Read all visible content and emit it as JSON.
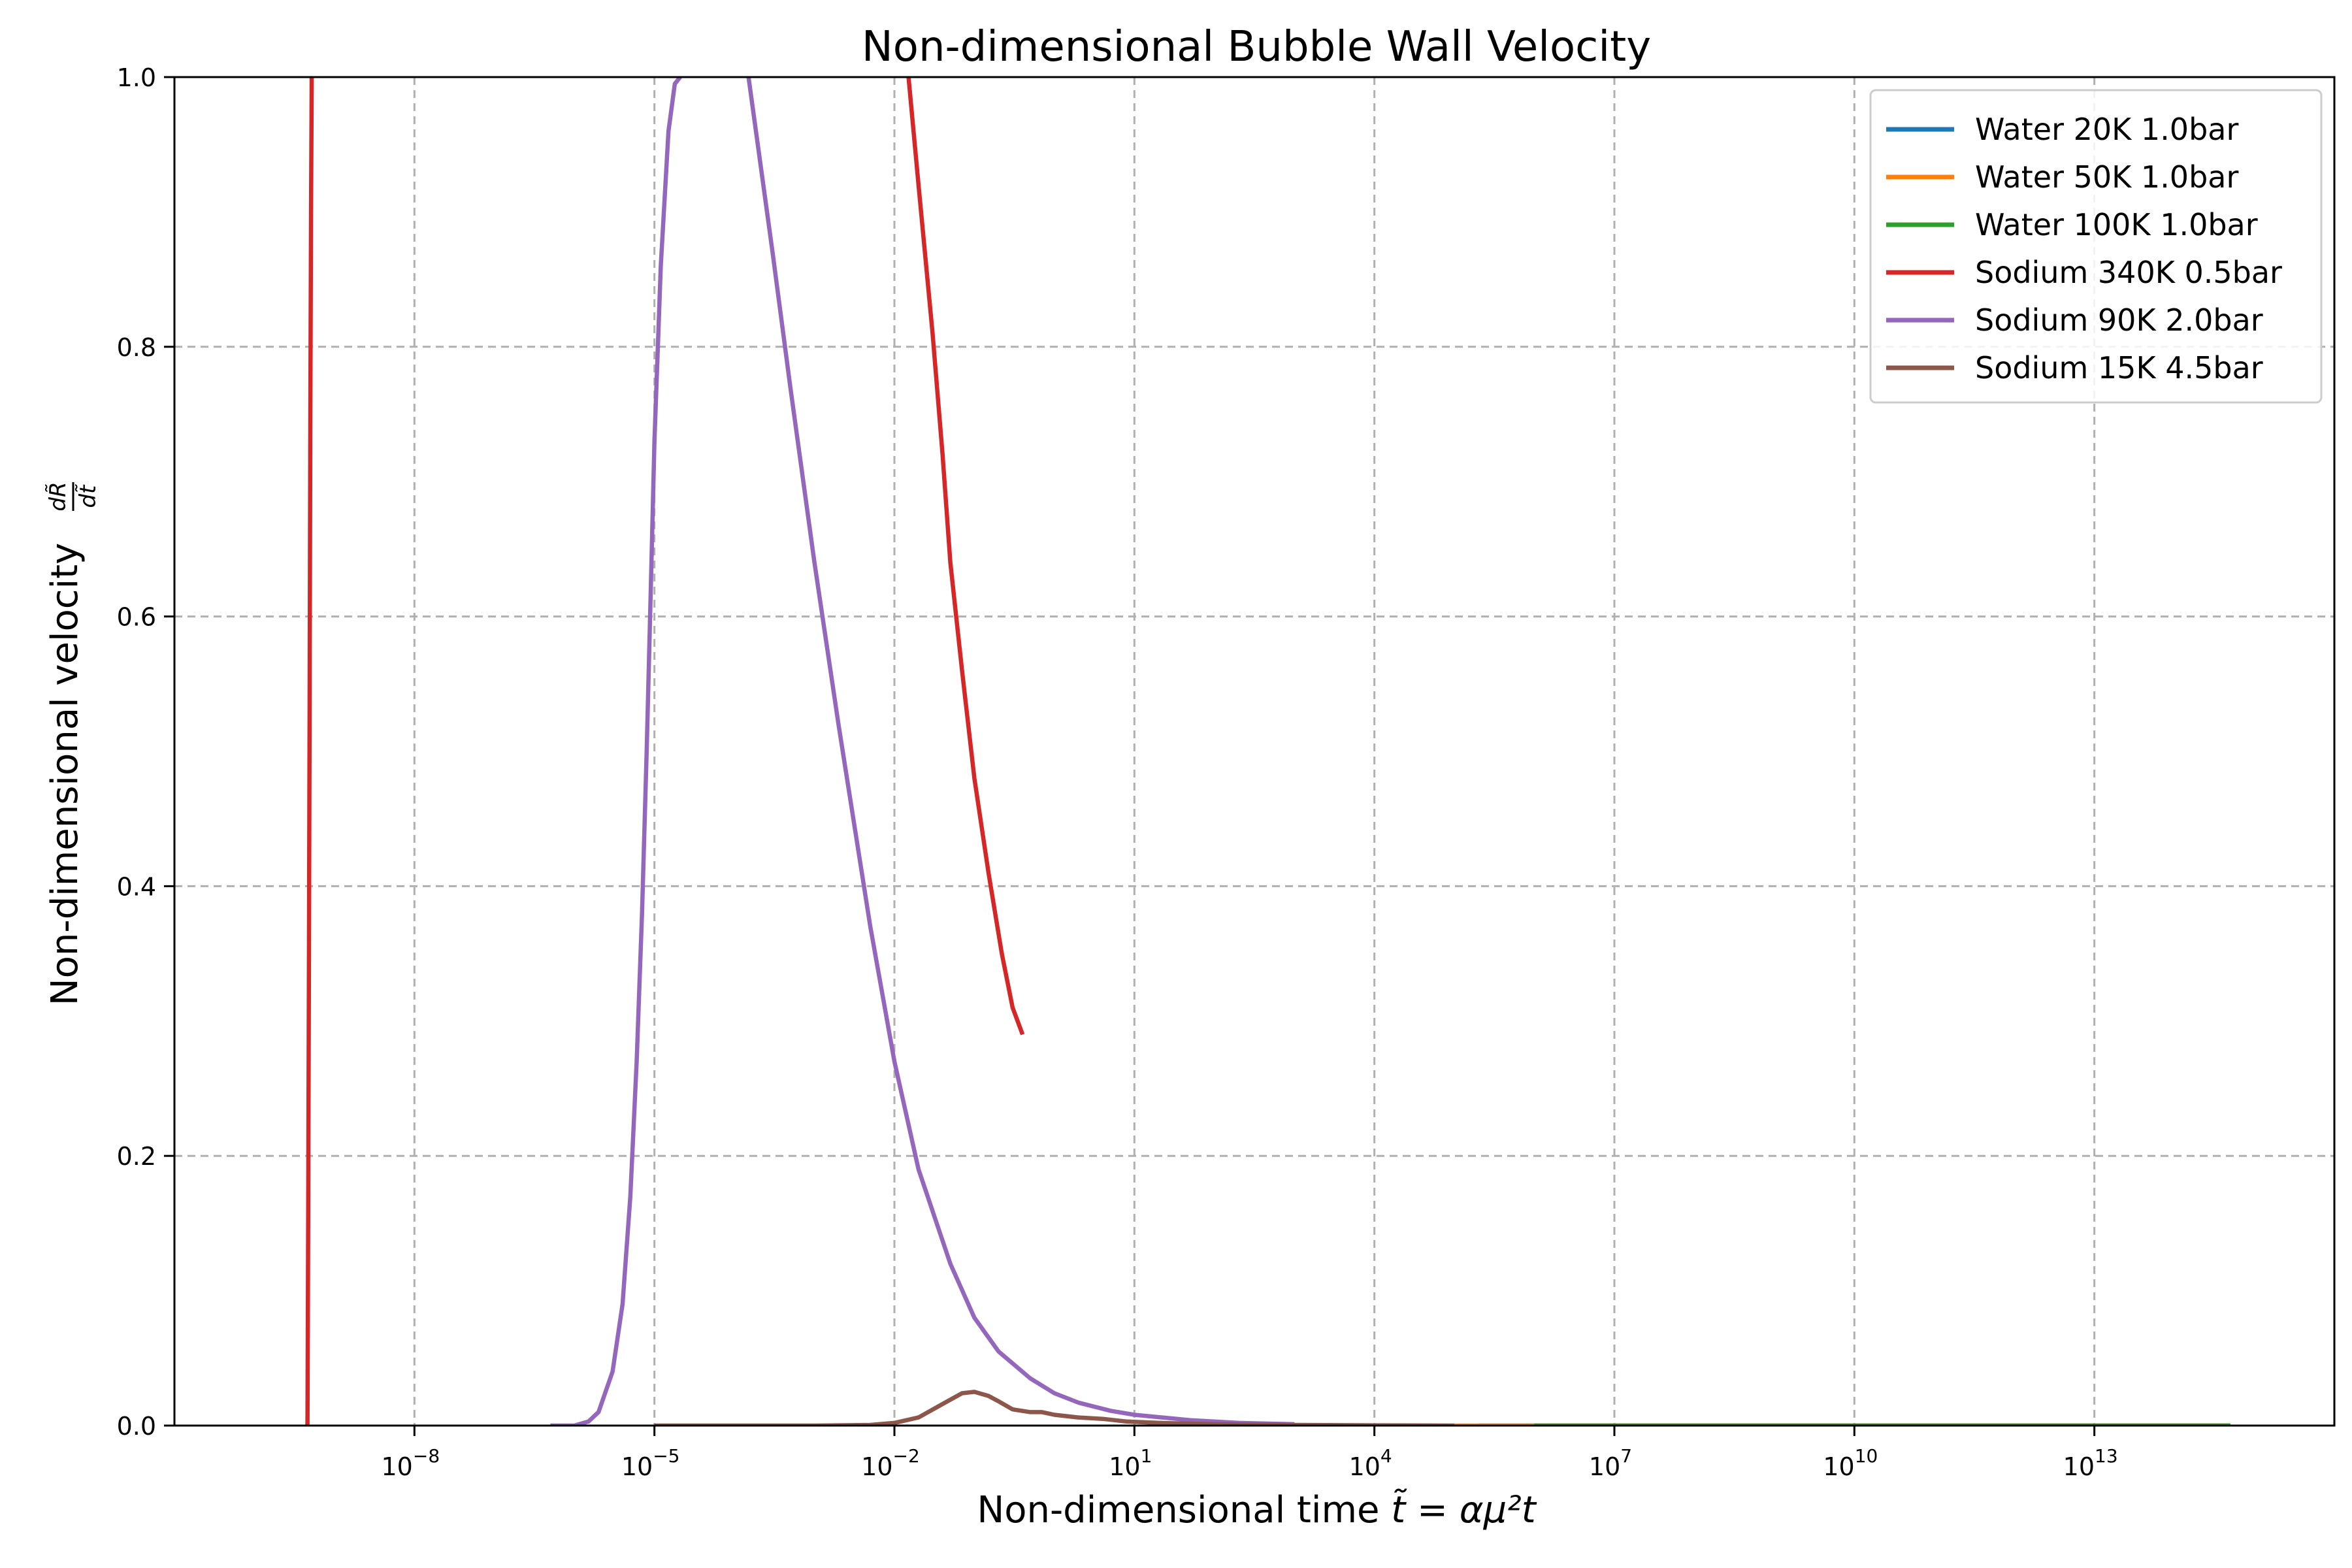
{
  "chart_data": {
    "type": "line",
    "title": "Non-dimensional Bubble Wall Velocity",
    "xlabel_text": "Non-dimensional time ",
    "xlabel_math": "t̃ = αμ²t",
    "ylabel_text": "Non-dimensional velocity ",
    "ylabel_math_num": "dR̃",
    "ylabel_math_den": "dt̃",
    "x_scale": "log",
    "xlim": [
      1e-11,
      1e+16
    ],
    "ylim": [
      0,
      1
    ],
    "grid": true,
    "legend_position": "top-right",
    "x_ticks": [
      {
        "base": "10",
        "exp": "−8",
        "value": 1e-08
      },
      {
        "base": "10",
        "exp": "−5",
        "value": 1e-05
      },
      {
        "base": "10",
        "exp": "−2",
        "value": 0.01
      },
      {
        "base": "10",
        "exp": "1",
        "value": 10.0
      },
      {
        "base": "10",
        "exp": "4",
        "value": 10000.0
      },
      {
        "base": "10",
        "exp": "7",
        "value": 10000000.0
      },
      {
        "base": "10",
        "exp": "10",
        "value": 10000000000.0
      },
      {
        "base": "10",
        "exp": "13",
        "value": 10000000000000.0
      }
    ],
    "y_ticks": [
      {
        "label": "0.0",
        "value": 0.0
      },
      {
        "label": "0.2",
        "value": 0.2
      },
      {
        "label": "0.4",
        "value": 0.4
      },
      {
        "label": "0.6",
        "value": 0.6
      },
      {
        "label": "0.8",
        "value": 0.8
      },
      {
        "label": "1.0",
        "value": 1.0
      }
    ],
    "series": [
      {
        "name": "Water 20K 1.0bar",
        "color": "#1f77b4",
        "x": [
          200000,
          1000000,
          10000000,
          1000000000.0,
          1000000000000.0,
          500000000000000.0
        ],
        "y": [
          0,
          0,
          0,
          0,
          0,
          0
        ]
      },
      {
        "name": "Water 50K 1.0bar",
        "color": "#ff7f0e",
        "x": [
          100000,
          300000,
          1000000,
          100000000.0,
          100000000000.0,
          500000000000000.0
        ],
        "y": [
          0,
          0,
          0,
          0,
          0,
          0
        ]
      },
      {
        "name": "Water 100K 1.0bar",
        "color": "#2ca02c",
        "x": [
          1000000,
          10000000,
          1000000000.0,
          100000000000.0,
          10000000000000.0,
          500000000000000.0
        ],
        "y": [
          0,
          0,
          0,
          0,
          0,
          0
        ]
      },
      {
        "name": "Sodium 340K 0.5bar",
        "color": "#d62728",
        "segments": [
          {
            "x": [
              4.6e-10,
              4.7e-10,
              4.8e-10,
              4.9e-10,
              5e-10,
              5.1e-10,
              5.2e-10
            ],
            "y": [
              0.0,
              0.15,
              0.35,
              0.55,
              0.75,
              0.9,
              1.0
            ]
          },
          {
            "x": [
              0.015,
              0.02,
              0.03,
              0.04,
              0.05,
              0.07,
              0.1,
              0.15,
              0.22,
              0.3,
              0.4
            ],
            "y": [
              1.0,
              0.92,
              0.81,
              0.72,
              0.64,
              0.56,
              0.48,
              0.41,
              0.35,
              0.31,
              0.29
            ]
          }
        ]
      },
      {
        "name": "Sodium 90K 2.0bar",
        "color": "#9467bd",
        "segments": [
          {
            "x": [
              5e-07,
              1e-06,
              1.5e-06,
              2e-06,
              3e-06,
              4e-06,
              5e-06,
              6e-06,
              7e-06,
              8e-06,
              9e-06,
              1e-05,
              1.2e-05,
              1.5e-05,
              1.8e-05,
              2.1e-05
            ],
            "y": [
              0.0,
              0.0,
              0.003,
              0.01,
              0.04,
              0.09,
              0.17,
              0.27,
              0.38,
              0.5,
              0.62,
              0.73,
              0.86,
              0.96,
              0.995,
              1.0
            ]
          },
          {
            "x": [
              0.00015,
              0.0003,
              0.0005,
              0.001,
              0.002,
              0.005,
              0.01,
              0.02,
              0.05,
              0.1,
              0.2,
              0.5,
              1,
              2,
              5,
              10,
              50,
              200,
              1000
            ],
            "y": [
              1.0,
              0.87,
              0.77,
              0.64,
              0.52,
              0.37,
              0.27,
              0.19,
              0.12,
              0.08,
              0.055,
              0.035,
              0.024,
              0.017,
              0.011,
              0.008,
              0.004,
              0.002,
              0.001
            ]
          }
        ]
      },
      {
        "name": "Sodium 15K 4.5bar",
        "color": "#8c564b",
        "x": [
          1e-05,
          0.0001,
          0.001,
          0.005,
          0.01,
          0.02,
          0.04,
          0.07,
          0.1,
          0.15,
          0.2,
          0.3,
          0.5,
          0.7,
          1,
          2,
          4,
          8,
          20,
          100,
          1000,
          10000,
          100000
        ],
        "y": [
          0,
          0,
          0,
          0.0005,
          0.002,
          0.006,
          0.016,
          0.024,
          0.025,
          0.022,
          0.018,
          0.012,
          0.01,
          0.01,
          0.008,
          0.006,
          0.005,
          0.003,
          0.002,
          0.001,
          0.0005,
          0.0002,
          0
        ]
      }
    ]
  }
}
